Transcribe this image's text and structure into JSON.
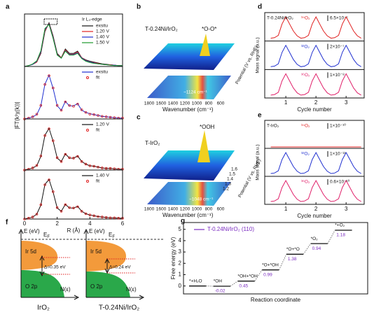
{
  "panel_labels": [
    "a",
    "b",
    "c",
    "d",
    "e",
    "f",
    "g"
  ],
  "chart_data": [
    {
      "type": "line",
      "legend_title": "Ir L₃-edge",
      "ylabel": "|FT(k³χ(k))|",
      "xlim": [
        0,
        6
      ],
      "ylim": [
        0,
        1.2
      ],
      "legend": "upper right",
      "x": [
        0,
        0.25,
        0.5,
        0.75,
        1,
        1.25,
        1.5,
        1.75,
        2,
        2.25,
        2.5,
        2.75,
        3,
        3.25,
        3.5,
        3.75,
        4,
        4.25,
        4.5,
        4.75,
        5,
        5.25,
        5.5,
        5.75,
        6
      ],
      "series": [
        {
          "name": "exsitu",
          "color": "#111111",
          "values": [
            0,
            0.02,
            0.05,
            0.1,
            0.3,
            0.8,
            1.0,
            0.7,
            0.3,
            0.2,
            0.4,
            0.3,
            0.3,
            0.35,
            0.2,
            0.15,
            0.12,
            0.1,
            0.08,
            0.06,
            0.05,
            0.04,
            0.03,
            0.02,
            0.02
          ]
        },
        {
          "name": "1.20 V",
          "color": "#e02020",
          "values": [
            0,
            0.02,
            0.05,
            0.1,
            0.32,
            0.82,
            0.98,
            0.68,
            0.28,
            0.2,
            0.38,
            0.28,
            0.28,
            0.33,
            0.2,
            0.14,
            0.1,
            0.09,
            0.07,
            0.05,
            0.04,
            0.04,
            0.03,
            0.02,
            0.02
          ]
        },
        {
          "name": "1.40 V",
          "color": "#1f2fd0",
          "values": [
            0,
            0.02,
            0.05,
            0.12,
            0.34,
            0.85,
            0.97,
            0.66,
            0.27,
            0.19,
            0.36,
            0.27,
            0.27,
            0.31,
            0.19,
            0.13,
            0.1,
            0.08,
            0.06,
            0.05,
            0.04,
            0.03,
            0.03,
            0.02,
            0.02
          ]
        },
        {
          "name": "1.50 V",
          "color": "#1a9a2a",
          "values": [
            0,
            0.02,
            0.06,
            0.13,
            0.36,
            0.87,
            0.96,
            0.64,
            0.26,
            0.19,
            0.35,
            0.26,
            0.26,
            0.3,
            0.18,
            0.12,
            0.09,
            0.07,
            0.06,
            0.05,
            0.04,
            0.03,
            0.02,
            0.02,
            0.02
          ]
        }
      ]
    },
    {
      "type": "line",
      "xlim": [
        0,
        6
      ],
      "ylim": [
        0,
        1.2
      ],
      "legend": "upper right",
      "x": [
        0,
        0.25,
        0.5,
        0.75,
        1,
        1.25,
        1.5,
        1.75,
        2,
        2.25,
        2.5,
        2.75,
        3,
        3.25,
        3.5,
        3.75,
        4,
        4.25,
        4.5,
        4.75,
        5,
        5.25,
        5.5,
        5.75,
        6
      ],
      "series": [
        {
          "name": "exsitu",
          "color": "#1f2fd0",
          "values": [
            0,
            0.02,
            0.05,
            0.1,
            0.3,
            0.8,
            1.0,
            0.7,
            0.3,
            0.2,
            0.4,
            0.3,
            0.3,
            0.35,
            0.2,
            0.15,
            0.12,
            0.1,
            0.08,
            0.06,
            0.05,
            0.04,
            0.03,
            0.02,
            0.02
          ]
        },
        {
          "name": "fit",
          "color": "#e02020",
          "marker": "circle",
          "values": [
            0,
            0.02,
            0.05,
            0.11,
            0.31,
            0.79,
            0.99,
            0.71,
            0.31,
            0.2,
            0.39,
            0.31,
            0.29,
            0.34,
            0.21,
            0.15,
            0.11,
            0.1,
            0.08,
            0.06,
            0.05,
            0.04,
            0.03,
            0.02,
            0.02
          ]
        }
      ]
    },
    {
      "type": "line",
      "xlim": [
        0,
        6
      ],
      "ylim": [
        0,
        1.2
      ],
      "legend": "upper right",
      "x": [
        0,
        0.25,
        0.5,
        0.75,
        1,
        1.25,
        1.5,
        1.75,
        2,
        2.25,
        2.5,
        2.75,
        3,
        3.25,
        3.5,
        3.75,
        4,
        4.25,
        4.5,
        4.75,
        5,
        5.25,
        5.5,
        5.75,
        6
      ],
      "series": [
        {
          "name": "1.20 V",
          "color": "#111111",
          "values": [
            0,
            0.02,
            0.05,
            0.1,
            0.32,
            0.82,
            0.98,
            0.68,
            0.28,
            0.2,
            0.38,
            0.28,
            0.28,
            0.33,
            0.2,
            0.14,
            0.1,
            0.09,
            0.07,
            0.05,
            0.04,
            0.04,
            0.03,
            0.02,
            0.02
          ]
        },
        {
          "name": "fit",
          "color": "#e02020",
          "marker": "circle",
          "values": [
            0,
            0.02,
            0.05,
            0.11,
            0.33,
            0.81,
            0.97,
            0.69,
            0.29,
            0.2,
            0.37,
            0.29,
            0.28,
            0.32,
            0.2,
            0.14,
            0.1,
            0.09,
            0.07,
            0.05,
            0.04,
            0.04,
            0.03,
            0.02,
            0.02
          ]
        }
      ]
    },
    {
      "type": "line",
      "xlabel": "R (Å)",
      "xlim": [
        0,
        6
      ],
      "ylim": [
        0,
        1.2
      ],
      "xticks": [
        0,
        2,
        4,
        6
      ],
      "legend": "upper right",
      "x": [
        0,
        0.25,
        0.5,
        0.75,
        1,
        1.25,
        1.5,
        1.75,
        2,
        2.25,
        2.5,
        2.75,
        3,
        3.25,
        3.5,
        3.75,
        4,
        4.25,
        4.5,
        4.75,
        5,
        5.25,
        5.5,
        5.75,
        6
      ],
      "series": [
        {
          "name": "1.40 V",
          "color": "#111111",
          "values": [
            0,
            0.02,
            0.05,
            0.12,
            0.34,
            0.85,
            0.97,
            0.66,
            0.27,
            0.19,
            0.36,
            0.27,
            0.27,
            0.31,
            0.19,
            0.13,
            0.1,
            0.08,
            0.06,
            0.05,
            0.04,
            0.03,
            0.03,
            0.02,
            0.02
          ]
        },
        {
          "name": "fit",
          "color": "#e02020",
          "marker": "circle",
          "values": [
            0,
            0.02,
            0.05,
            0.12,
            0.35,
            0.84,
            0.96,
            0.67,
            0.28,
            0.19,
            0.35,
            0.28,
            0.27,
            0.3,
            0.19,
            0.13,
            0.1,
            0.08,
            0.06,
            0.05,
            0.04,
            0.03,
            0.03,
            0.02,
            0.02
          ]
        }
      ]
    },
    {
      "type": "line",
      "stacked": true,
      "title": "T-0.24Ni/IrO₂",
      "xlabel": "Cycle number",
      "ylabel": "Mass signal (a.u.)",
      "xlim": [
        0.3,
        3.6
      ],
      "ylim": [
        0,
        1
      ],
      "xticks": [
        1,
        2,
        3
      ],
      "x": [
        0.5,
        0.625,
        0.75,
        0.875,
        1,
        1.125,
        1.25,
        1.375,
        1.5,
        1.625,
        1.75,
        1.875,
        2,
        2.125,
        2.25,
        2.375,
        2.5,
        2.625,
        2.75,
        2.875,
        3,
        3.125,
        3.25,
        3.375,
        3.5
      ],
      "series": [
        {
          "name": "³⁴O₂",
          "scale": "6.5×10⁻⁷",
          "color": "#e02020",
          "values": [
            0.1,
            0.12,
            0.2,
            0.6,
            0.85,
            0.6,
            0.35,
            0.18,
            0.1,
            0.12,
            0.2,
            0.6,
            0.85,
            0.6,
            0.35,
            0.18,
            0.1,
            0.12,
            0.2,
            0.6,
            0.85,
            0.6,
            0.35,
            0.18,
            0.1
          ]
        },
        {
          "name": "³²O₂",
          "scale": "2×10⁻⁷",
          "color": "#2030d0",
          "values": [
            0.1,
            0.12,
            0.2,
            0.6,
            0.85,
            0.6,
            0.35,
            0.18,
            0.1,
            0.12,
            0.2,
            0.6,
            0.85,
            0.6,
            0.35,
            0.18,
            0.1,
            0.12,
            0.2,
            0.6,
            0.85,
            0.6,
            0.35,
            0.18,
            0.1
          ]
        },
        {
          "name": "³⁶O₂",
          "scale": "1×10⁻⁸",
          "color": "#e0206a",
          "values": [
            0.1,
            0.12,
            0.2,
            0.6,
            0.85,
            0.6,
            0.35,
            0.18,
            0.1,
            0.12,
            0.2,
            0.6,
            0.85,
            0.6,
            0.35,
            0.18,
            0.1,
            0.12,
            0.2,
            0.6,
            0.85,
            0.6,
            0.35,
            0.18,
            0.1
          ]
        }
      ]
    },
    {
      "type": "line",
      "stacked": true,
      "title": "T-IrO₂",
      "xlabel": "Cycle number",
      "ylabel": "Mass signal (a.u.)",
      "xlim": [
        0.3,
        3.6
      ],
      "ylim": [
        0,
        1
      ],
      "xticks": [
        1,
        2,
        3
      ],
      "x": [
        0.5,
        0.625,
        0.75,
        0.875,
        1,
        1.125,
        1.25,
        1.375,
        1.5,
        1.625,
        1.75,
        1.875,
        2,
        2.125,
        2.25,
        2.375,
        2.5,
        2.625,
        2.75,
        2.875,
        3,
        3.125,
        3.25,
        3.375,
        3.5
      ],
      "series": [
        {
          "name": "³⁴O₂",
          "scale": "1×10⁻¹⁰",
          "color": "#e02020",
          "values": [
            0.05,
            0.05,
            0.05,
            0.05,
            0.05,
            0.05,
            0.05,
            0.05,
            0.05,
            0.05,
            0.05,
            0.05,
            0.05,
            0.05,
            0.05,
            0.05,
            0.05,
            0.05,
            0.05,
            0.05,
            0.05,
            0.05,
            0.05,
            0.05,
            0.05
          ]
        },
        {
          "name": "³²O₂",
          "scale": "1×10⁻¹²",
          "color": "#2030d0",
          "values": [
            0.1,
            0.12,
            0.2,
            0.6,
            0.85,
            0.6,
            0.35,
            0.18,
            0.1,
            0.12,
            0.2,
            0.6,
            0.85,
            0.6,
            0.35,
            0.18,
            0.1,
            0.12,
            0.2,
            0.6,
            0.85,
            0.6,
            0.35,
            0.18,
            0.1
          ]
        },
        {
          "name": "³⁶O₂",
          "scale": "0.6×10⁻¹⁰",
          "color": "#e0206a",
          "values": [
            0.1,
            0.12,
            0.2,
            0.6,
            0.85,
            0.6,
            0.35,
            0.18,
            0.1,
            0.12,
            0.2,
            0.6,
            0.85,
            0.6,
            0.35,
            0.18,
            0.1,
            0.12,
            0.2,
            0.6,
            0.85,
            0.6,
            0.35,
            0.18,
            0.1
          ]
        }
      ]
    },
    {
      "type": "energy",
      "xlabel": "Reaction coordinate",
      "ylabel": "Free energy (eV)",
      "ylim": [
        -0.7,
        5.6
      ],
      "yticks": [
        0,
        1,
        2,
        3,
        4,
        5
      ],
      "categories": [
        "*+H₂O",
        "*OH",
        "*OH+*OH",
        "*O+*OH",
        "*O+*O",
        "*O₂",
        "*+O₂"
      ],
      "series": [
        {
          "name": "T-0.24Ni/IrO₂ (110)",
          "color": "#7b2cc0",
          "values": [
            0,
            -0.02,
            0.43,
            1.42,
            2.8,
            3.74,
            4.92
          ]
        }
      ],
      "step_labels": [
        -0.02,
        0.45,
        0.99,
        1.38,
        0.94,
        1.18
      ]
    }
  ],
  "ftir": {
    "b": {
      "sample": "T-0.24Ni/IrO₂",
      "peak": "*O-O*",
      "band": "~1124 cm⁻¹"
    },
    "c": {
      "sample": "T-IrO₂",
      "peak": "*OOH",
      "band": "~1048 cm⁻¹",
      "potential_ticks": [
        "1.2",
        "1.3",
        "1.4",
        "1.5",
        "1.6"
      ]
    },
    "xlabel": "Wavenumber (cm⁻¹)",
    "xticks": [
      "1800",
      "1600",
      "1400",
      "1200",
      "1000",
      "800",
      "600"
    ],
    "potential_label": "Potential (V vs. RHE)"
  },
  "diagram": {
    "energy_axis": "E (eV)",
    "fermi": {
      "base": "E",
      "sub": "F"
    },
    "dos_axis": "N(ε)",
    "upper_band": "Ir 5d",
    "lower_band": "O 2p",
    "left": {
      "gap": "Δ=0.35 eV",
      "label": "IrO₂"
    },
    "right": {
      "gap": "Δ=0.24 eV",
      "label": "T-0.24Ni/IrO₂"
    }
  }
}
